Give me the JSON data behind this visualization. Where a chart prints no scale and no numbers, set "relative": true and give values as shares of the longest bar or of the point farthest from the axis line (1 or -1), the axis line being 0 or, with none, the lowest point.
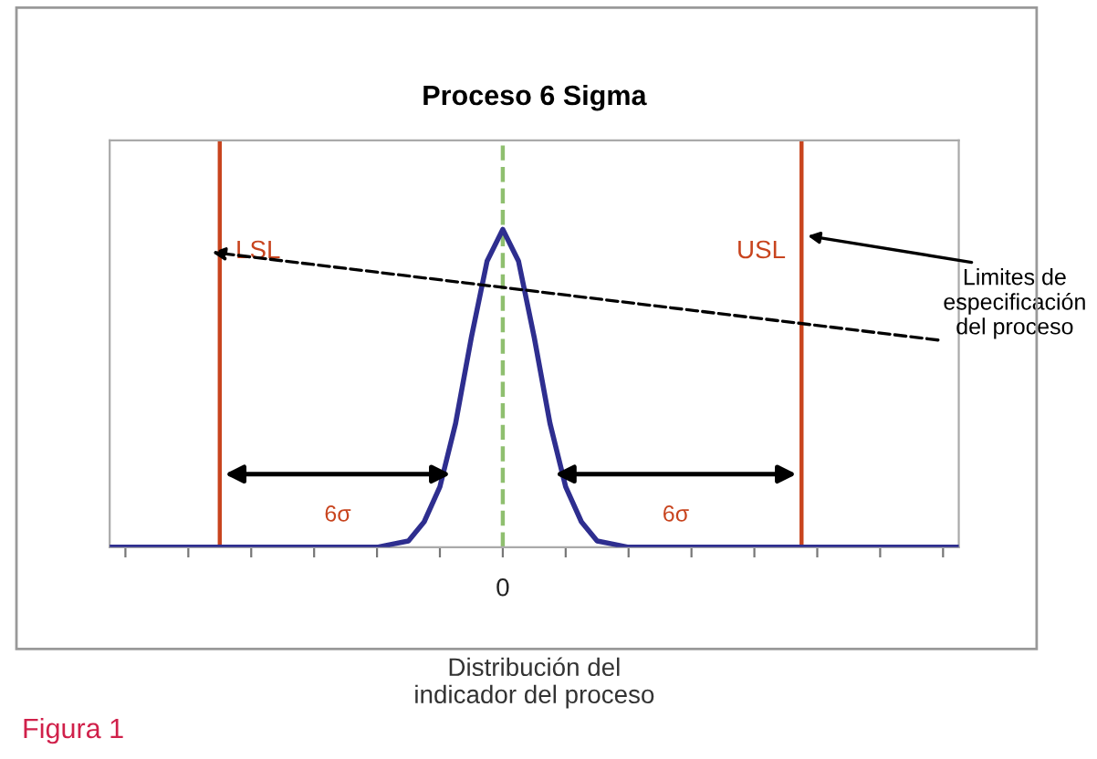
{
  "chart_data": {
    "type": "line",
    "title": "Proceso 6 Sigma",
    "xlabel": "Distribución del\nindicador del proceso",
    "relative": true,
    "categories": [
      null,
      null,
      null,
      null,
      null,
      null,
      null,
      null,
      null,
      null,
      null,
      null,
      null,
      null,
      null,
      null,
      null,
      null,
      null,
      null,
      null,
      null,
      null,
      null,
      null,
      null,
      null,
      null,
      null,
      null,
      null,
      null,
      null,
      null,
      null,
      null,
      null,
      null,
      null,
      null,
      null,
      null,
      null,
      null,
      null,
      null,
      null,
      null,
      null,
      null,
      null,
      null,
      null,
      null,
      null
    ],
    "series": [
      {
        "color": "#2e2e8f",
        "values": [
          0,
          0,
          0,
          0,
          0,
          0,
          0,
          0,
          0,
          0,
          0,
          0,
          0,
          0,
          0,
          0,
          0,
          0,
          0.01,
          0.02,
          0.08,
          0.19,
          0.39,
          0.66,
          0.9,
          1,
          0.9,
          0.66,
          0.39,
          0.19,
          0.08,
          0.02,
          0.01,
          0,
          0,
          0,
          0,
          0,
          0,
          0,
          0,
          0,
          0,
          0,
          0,
          0,
          0,
          0,
          0,
          0,
          0,
          0,
          0,
          0,
          0
        ]
      }
    ],
    "annotations": [
      "6σ",
      "6σ",
      "Limites de\nespecificación\ndel proceso",
      "Figura 1",
      "0",
      "LSL",
      "USL"
    ],
    "grid": false,
    "legend": false,
    "marker": "none",
    "line_style": "solid"
  }
}
